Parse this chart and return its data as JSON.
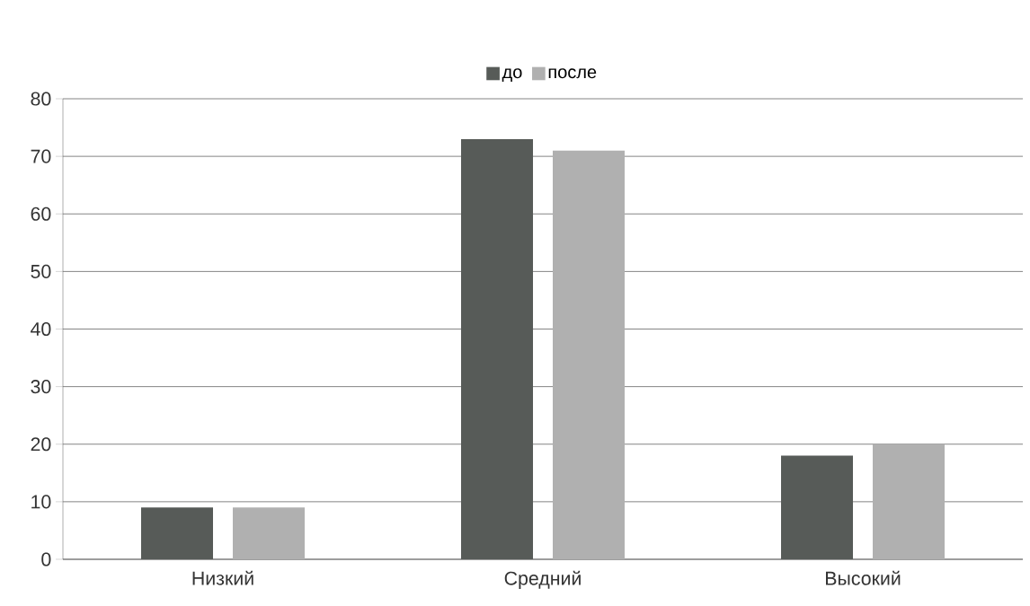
{
  "chart_data": {
    "type": "bar",
    "categories": [
      "Низкий",
      "Средний",
      "Высокий"
    ],
    "series": [
      {
        "name": "до",
        "color": "#575b58",
        "values": [
          9,
          73,
          18
        ]
      },
      {
        "name": "после",
        "color": "#b0b0b0",
        "values": [
          9,
          71,
          20
        ]
      }
    ],
    "ylim": [
      0,
      80
    ],
    "yticks": [
      0,
      10,
      20,
      30,
      40,
      50,
      60,
      70,
      80
    ],
    "grid": "y",
    "legend": "top"
  }
}
